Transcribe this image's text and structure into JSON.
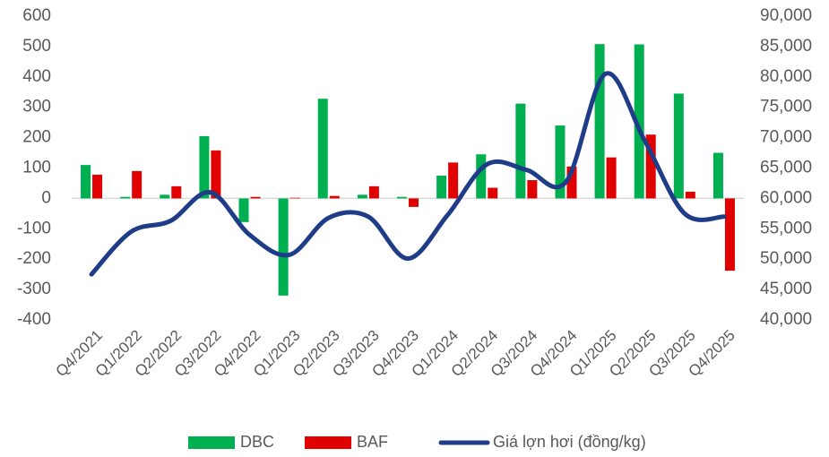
{
  "chart_data": {
    "type": "bar-line",
    "categories": [
      "Q4/2021",
      "Q1/2022",
      "Q2/2022",
      "Q3/2022",
      "Q4/2022",
      "Q1/2023",
      "Q2/2023",
      "Q3/2023",
      "Q4/2023",
      "Q1/2024",
      "Q2/2024",
      "Q3/2024",
      "Q4/2024",
      "Q1/2025",
      "Q2/2025",
      "Q3/2025",
      "Q4/2025"
    ],
    "series": [
      {
        "name": "DBC",
        "color": "#00b050",
        "type": "bar",
        "values": [
          110,
          5,
          12,
          205,
          -78,
          -320,
          328,
          12,
          5,
          75,
          145,
          312,
          240,
          508,
          507,
          345,
          150
        ]
      },
      {
        "name": "BAF",
        "color": "#e00000",
        "type": "bar",
        "values": [
          78,
          90,
          40,
          158,
          5,
          2,
          8,
          40,
          -28,
          118,
          35,
          60,
          105,
          135,
          210,
          22,
          -238
        ]
      },
      {
        "name": "Giá lợn hơi (đồng/kg)",
        "color": "#1f3c88",
        "type": "line",
        "axis": "y2",
        "values": [
          47500,
          54500,
          56300,
          61000,
          54000,
          50700,
          56800,
          57000,
          50100,
          57200,
          65600,
          64700,
          62700,
          80500,
          69400,
          57500,
          57000
        ]
      }
    ],
    "ylim": [
      -400,
      600
    ],
    "yticks": [
      -400,
      -300,
      -200,
      -100,
      0,
      100,
      200,
      300,
      400,
      500,
      600
    ],
    "y2lim": [
      40000,
      90000
    ],
    "y2ticks": [
      {
        "value": 40000,
        "label": "40,000"
      },
      {
        "value": 45000,
        "label": "45,000"
      },
      {
        "value": 50000,
        "label": "50,000"
      },
      {
        "value": 55000,
        "label": "55,000"
      },
      {
        "value": 60000,
        "label": "60,000"
      },
      {
        "value": 65000,
        "label": "65,000"
      },
      {
        "value": 70000,
        "label": "70,000"
      },
      {
        "value": 75000,
        "label": "75,000"
      },
      {
        "value": 80000,
        "label": "80,000"
      },
      {
        "value": 85000,
        "label": "85,000"
      },
      {
        "value": 90000,
        "label": "90,000"
      }
    ],
    "legend": "bottom"
  }
}
